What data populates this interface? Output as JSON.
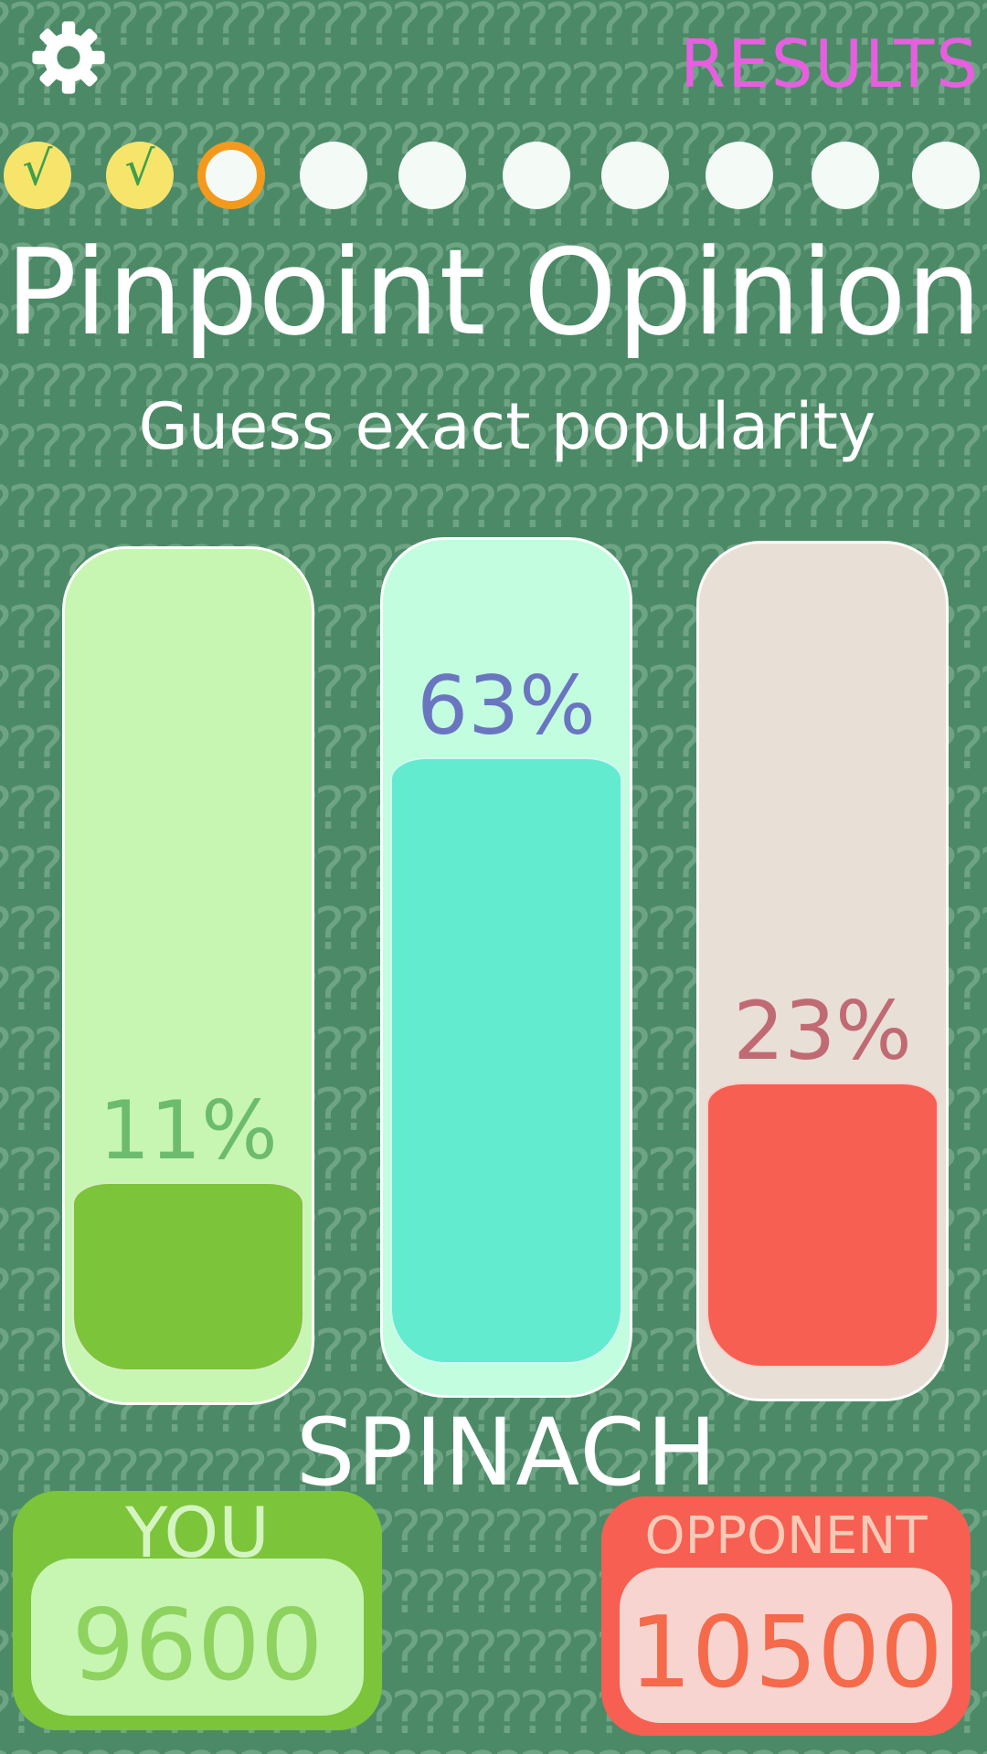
{
  "header": {
    "settings_icon": "gear-icon",
    "results_label": "RESULTS"
  },
  "progress": {
    "total": 10,
    "completed": 2,
    "current": 3,
    "check_glyph": "√"
  },
  "title": "Pinpoint Opinion",
  "subtitle": "Guess exact popularity",
  "bars": [
    {
      "percent_label": "11%",
      "value": 11,
      "tube_color": "#c6f6b2",
      "fill_color": "#7cc43a",
      "text_color": "#6dbb6e"
    },
    {
      "percent_label": "63%",
      "value": 63,
      "tube_color": "#c2fde0",
      "fill_color": "#63ebcf",
      "text_color": "#6a75c0"
    },
    {
      "percent_label": "23%",
      "value": 23,
      "tube_color": "#e8dfd6",
      "fill_color": "#f65f51",
      "text_color": "#c06a74"
    }
  ],
  "word": "SPINACH",
  "scores": {
    "you": {
      "label": "YOU",
      "value": "9600",
      "outer_color": "#7cc43a",
      "inner_color": "#c7f5b2",
      "label_color": "#d4f5c0",
      "value_color": "#8ed25f"
    },
    "opponent": {
      "label": "OPPONENT",
      "value": "10500",
      "outer_color": "#f65f51",
      "inner_color": "#f7d4cf",
      "label_color": "#f9c9b7",
      "value_color": "#f46a4a"
    }
  },
  "colors": {
    "background": "#4c8a67",
    "accent_results": "#e75fe0",
    "progress_done": "#f6e56a",
    "progress_current_ring": "#f39a1e"
  }
}
